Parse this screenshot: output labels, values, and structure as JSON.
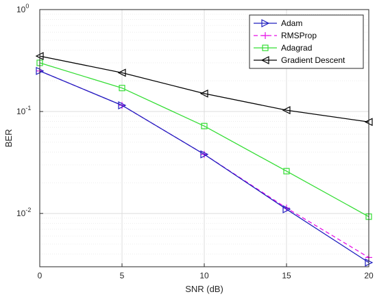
{
  "chart_data": {
    "type": "line",
    "title": "",
    "xlabel": "SNR (dB)",
    "ylabel": "BER",
    "x": [
      0,
      5,
      10,
      15,
      20
    ],
    "xlim": [
      0,
      20
    ],
    "ylim": [
      0.003,
      1
    ],
    "y_scale": "log",
    "grid": true,
    "minor_grid": true,
    "legend_position": "top-right",
    "x_ticks": [
      "0",
      "5",
      "10",
      "15",
      "20"
    ],
    "y_ticks": [
      {
        "base": "10",
        "exp": "-2",
        "value": 0.01
      },
      {
        "base": "10",
        "exp": "-1",
        "value": 0.1
      },
      {
        "base": "10",
        "exp": "0",
        "value": 1
      }
    ],
    "series": [
      {
        "name": "Adam",
        "color": "#1f1fbf",
        "marker": "triangle-right",
        "dash": "solid",
        "values": [
          0.25,
          0.115,
          0.038,
          0.011,
          0.0033
        ]
      },
      {
        "name": "RMSProp",
        "color": "#e60fe6",
        "marker": "plus",
        "dash": "dashed",
        "values": [
          0.25,
          0.115,
          0.038,
          0.0113,
          0.0037
        ]
      },
      {
        "name": "Adagrad",
        "color": "#33dd33",
        "marker": "square",
        "dash": "solid",
        "values": [
          0.3,
          0.17,
          0.072,
          0.026,
          0.0093
        ]
      },
      {
        "name": "Gradient Descent",
        "color": "#000000",
        "marker": "triangle-left",
        "dash": "solid",
        "values": [
          0.35,
          0.24,
          0.15,
          0.103,
          0.079
        ]
      }
    ]
  }
}
